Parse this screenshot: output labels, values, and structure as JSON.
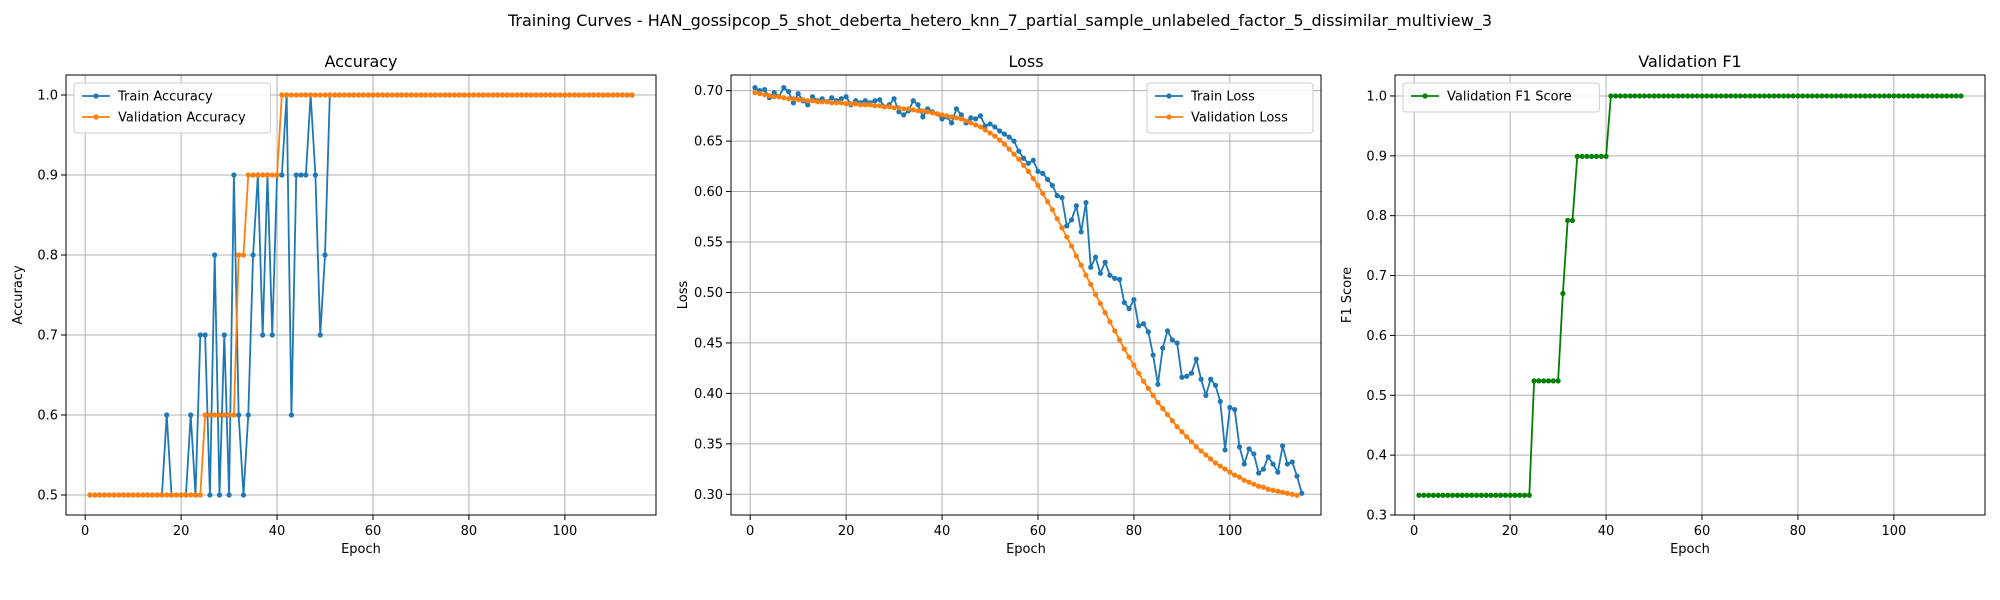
{
  "figure": {
    "suptitle": "Training Curves - HAN_gossipcop_5_shot_deberta_hetero_knn_7_partial_sample_unlabeled_factor_5_dissimilar_multiview_3"
  },
  "colors": {
    "train": "#1f77b4",
    "validation": "#ff7f0e",
    "f1": "#008000",
    "grid": "#b0b0b0"
  },
  "chart_data": [
    {
      "type": "line",
      "title": "Accuracy",
      "xlabel": "Epoch",
      "ylabel": "Accuracy",
      "xlim": [
        -4,
        119
      ],
      "ylim": [
        0.475,
        1.025
      ],
      "xticks": [
        0,
        20,
        40,
        60,
        80,
        100
      ],
      "yticks": [
        0.5,
        0.6,
        0.7,
        0.8,
        0.9,
        1.0
      ],
      "ytick_labels": [
        "0.5",
        "0.6",
        "0.7",
        "0.8",
        "0.9",
        "1.0"
      ],
      "grid": true,
      "legend": "upper-left",
      "series": [
        {
          "name": "Train Accuracy",
          "color_key": "train",
          "x_start": 1,
          "values": [
            0.5,
            0.5,
            0.5,
            0.5,
            0.5,
            0.5,
            0.5,
            0.5,
            0.5,
            0.5,
            0.5,
            0.5,
            0.5,
            0.5,
            0.5,
            0.5,
            0.6,
            0.5,
            0.5,
            0.5,
            0.5,
            0.6,
            0.5,
            0.7,
            0.7,
            0.5,
            0.8,
            0.5,
            0.7,
            0.5,
            0.9,
            0.6,
            0.5,
            0.6,
            0.8,
            0.9,
            0.7,
            0.9,
            0.7,
            0.9,
            0.9,
            1.0,
            0.6,
            0.9,
            0.9,
            0.9,
            1.0,
            0.9,
            0.7,
            0.8,
            1.0,
            1.0,
            1.0,
            1.0,
            1.0,
            1.0,
            1.0,
            1.0,
            1.0,
            1.0,
            1.0,
            1.0,
            1.0,
            1.0,
            1.0,
            1.0,
            1.0,
            1.0,
            1.0,
            1.0,
            1.0,
            1.0,
            1.0,
            1.0,
            1.0,
            1.0,
            1.0,
            1.0,
            1.0,
            1.0,
            1.0,
            1.0,
            1.0,
            1.0,
            1.0,
            1.0,
            1.0,
            1.0,
            1.0,
            1.0,
            1.0,
            1.0,
            1.0,
            1.0,
            1.0,
            1.0,
            1.0,
            1.0,
            1.0,
            1.0,
            1.0,
            1.0,
            1.0,
            1.0,
            1.0,
            1.0,
            1.0,
            1.0,
            1.0,
            1.0,
            1.0,
            1.0,
            1.0,
            1.0
          ]
        },
        {
          "name": "Validation Accuracy",
          "color_key": "validation",
          "x_start": 1,
          "values": [
            0.5,
            0.5,
            0.5,
            0.5,
            0.5,
            0.5,
            0.5,
            0.5,
            0.5,
            0.5,
            0.5,
            0.5,
            0.5,
            0.5,
            0.5,
            0.5,
            0.5,
            0.5,
            0.5,
            0.5,
            0.5,
            0.5,
            0.5,
            0.5,
            0.6,
            0.6,
            0.6,
            0.6,
            0.6,
            0.6,
            0.6,
            0.8,
            0.8,
            0.9,
            0.9,
            0.9,
            0.9,
            0.9,
            0.9,
            0.9,
            1.0,
            1.0,
            1.0,
            1.0,
            1.0,
            1.0,
            1.0,
            1.0,
            1.0,
            1.0,
            1.0,
            1.0,
            1.0,
            1.0,
            1.0,
            1.0,
            1.0,
            1.0,
            1.0,
            1.0,
            1.0,
            1.0,
            1.0,
            1.0,
            1.0,
            1.0,
            1.0,
            1.0,
            1.0,
            1.0,
            1.0,
            1.0,
            1.0,
            1.0,
            1.0,
            1.0,
            1.0,
            1.0,
            1.0,
            1.0,
            1.0,
            1.0,
            1.0,
            1.0,
            1.0,
            1.0,
            1.0,
            1.0,
            1.0,
            1.0,
            1.0,
            1.0,
            1.0,
            1.0,
            1.0,
            1.0,
            1.0,
            1.0,
            1.0,
            1.0,
            1.0,
            1.0,
            1.0,
            1.0,
            1.0,
            1.0,
            1.0,
            1.0,
            1.0,
            1.0,
            1.0,
            1.0,
            1.0,
            1.0
          ]
        }
      ]
    },
    {
      "type": "line",
      "title": "Loss",
      "xlabel": "Epoch",
      "ylabel": "Loss",
      "xlim": [
        -4,
        119
      ],
      "ylim": [
        0.2795,
        0.7155
      ],
      "xticks": [
        0,
        20,
        40,
        60,
        80,
        100
      ],
      "yticks": [
        0.3,
        0.35,
        0.4,
        0.45,
        0.5,
        0.55,
        0.6,
        0.65,
        0.7
      ],
      "ytick_labels": [
        "0.30",
        "0.35",
        "0.40",
        "0.45",
        "0.50",
        "0.55",
        "0.60",
        "0.65",
        "0.70"
      ],
      "grid": true,
      "legend": "upper-right",
      "series": [
        {
          "name": "Train Loss",
          "color_key": "train",
          "x_start": 1,
          "values": [
            0.703,
            0.7,
            0.701,
            0.693,
            0.698,
            0.694,
            0.703,
            0.699,
            0.688,
            0.697,
            0.69,
            0.686,
            0.694,
            0.69,
            0.692,
            0.689,
            0.693,
            0.69,
            0.692,
            0.694,
            0.686,
            0.69,
            0.688,
            0.69,
            0.688,
            0.69,
            0.691,
            0.684,
            0.686,
            0.692,
            0.679,
            0.676,
            0.68,
            0.69,
            0.686,
            0.674,
            0.682,
            0.679,
            0.677,
            0.672,
            0.674,
            0.668,
            0.682,
            0.676,
            0.668,
            0.673,
            0.672,
            0.675,
            0.665,
            0.667,
            0.664,
            0.66,
            0.657,
            0.654,
            0.65,
            0.64,
            0.633,
            0.628,
            0.631,
            0.62,
            0.618,
            0.612,
            0.606,
            0.596,
            0.594,
            0.566,
            0.572,
            0.586,
            0.56,
            0.589,
            0.525,
            0.535,
            0.519,
            0.53,
            0.517,
            0.514,
            0.513,
            0.49,
            0.484,
            0.493,
            0.467,
            0.469,
            0.461,
            0.438,
            0.409,
            0.445,
            0.462,
            0.453,
            0.45,
            0.416,
            0.417,
            0.42,
            0.434,
            0.414,
            0.398,
            0.414,
            0.408,
            0.392,
            0.344,
            0.386,
            0.384,
            0.347,
            0.33,
            0.345,
            0.34,
            0.321,
            0.325,
            0.337,
            0.33,
            0.322,
            0.348,
            0.33,
            0.332,
            0.318,
            0.301
          ]
        },
        {
          "name": "Validation Loss",
          "color_key": "validation",
          "x_start": 1,
          "values": [
            0.698,
            0.697,
            0.696,
            0.695,
            0.694,
            0.694,
            0.693,
            0.692,
            0.692,
            0.691,
            0.691,
            0.69,
            0.69,
            0.689,
            0.689,
            0.689,
            0.688,
            0.688,
            0.688,
            0.687,
            0.687,
            0.687,
            0.686,
            0.686,
            0.686,
            0.685,
            0.685,
            0.684,
            0.684,
            0.683,
            0.683,
            0.682,
            0.682,
            0.681,
            0.68,
            0.68,
            0.679,
            0.678,
            0.677,
            0.676,
            0.675,
            0.674,
            0.673,
            0.672,
            0.67,
            0.668,
            0.666,
            0.664,
            0.661,
            0.658,
            0.655,
            0.651,
            0.647,
            0.642,
            0.637,
            0.632,
            0.626,
            0.62,
            0.613,
            0.606,
            0.598,
            0.59,
            0.582,
            0.573,
            0.564,
            0.555,
            0.546,
            0.536,
            0.527,
            0.517,
            0.508,
            0.498,
            0.489,
            0.48,
            0.471,
            0.462,
            0.453,
            0.444,
            0.436,
            0.428,
            0.42,
            0.412,
            0.405,
            0.398,
            0.391,
            0.385,
            0.379,
            0.373,
            0.367,
            0.362,
            0.357,
            0.352,
            0.347,
            0.343,
            0.339,
            0.335,
            0.331,
            0.328,
            0.325,
            0.322,
            0.319,
            0.317,
            0.314,
            0.312,
            0.31,
            0.308,
            0.307,
            0.305,
            0.304,
            0.303,
            0.302,
            0.301,
            0.3,
            0.299
          ]
        }
      ]
    },
    {
      "type": "line",
      "title": "Validation F1",
      "xlabel": "Epoch",
      "ylabel": "F1 Score",
      "xlim": [
        -4,
        119
      ],
      "ylim": [
        0.3,
        1.035
      ],
      "xticks": [
        0,
        20,
        40,
        60,
        80,
        100
      ],
      "yticks": [
        0.3,
        0.4,
        0.5,
        0.6,
        0.7,
        0.8,
        0.9,
        1.0
      ],
      "ytick_labels": [
        "0.3",
        "0.4",
        "0.5",
        "0.6",
        "0.7",
        "0.8",
        "0.9",
        "1.0"
      ],
      "grid": true,
      "legend": "upper-left",
      "series": [
        {
          "name": "Validation F1 Score",
          "color_key": "f1",
          "x_start": 1,
          "values": [
            0.333,
            0.333,
            0.333,
            0.333,
            0.333,
            0.333,
            0.333,
            0.333,
            0.333,
            0.333,
            0.333,
            0.333,
            0.333,
            0.333,
            0.333,
            0.333,
            0.333,
            0.333,
            0.333,
            0.333,
            0.333,
            0.333,
            0.333,
            0.333,
            0.524,
            0.524,
            0.524,
            0.524,
            0.524,
            0.524,
            0.67,
            0.792,
            0.792,
            0.899,
            0.899,
            0.899,
            0.899,
            0.899,
            0.899,
            0.899,
            1.0,
            1.0,
            1.0,
            1.0,
            1.0,
            1.0,
            1.0,
            1.0,
            1.0,
            1.0,
            1.0,
            1.0,
            1.0,
            1.0,
            1.0,
            1.0,
            1.0,
            1.0,
            1.0,
            1.0,
            1.0,
            1.0,
            1.0,
            1.0,
            1.0,
            1.0,
            1.0,
            1.0,
            1.0,
            1.0,
            1.0,
            1.0,
            1.0,
            1.0,
            1.0,
            1.0,
            1.0,
            1.0,
            1.0,
            1.0,
            1.0,
            1.0,
            1.0,
            1.0,
            1.0,
            1.0,
            1.0,
            1.0,
            1.0,
            1.0,
            1.0,
            1.0,
            1.0,
            1.0,
            1.0,
            1.0,
            1.0,
            1.0,
            1.0,
            1.0,
            1.0,
            1.0,
            1.0,
            1.0,
            1.0,
            1.0,
            1.0,
            1.0,
            1.0,
            1.0,
            1.0,
            1.0,
            1.0,
            1.0
          ]
        }
      ]
    }
  ]
}
